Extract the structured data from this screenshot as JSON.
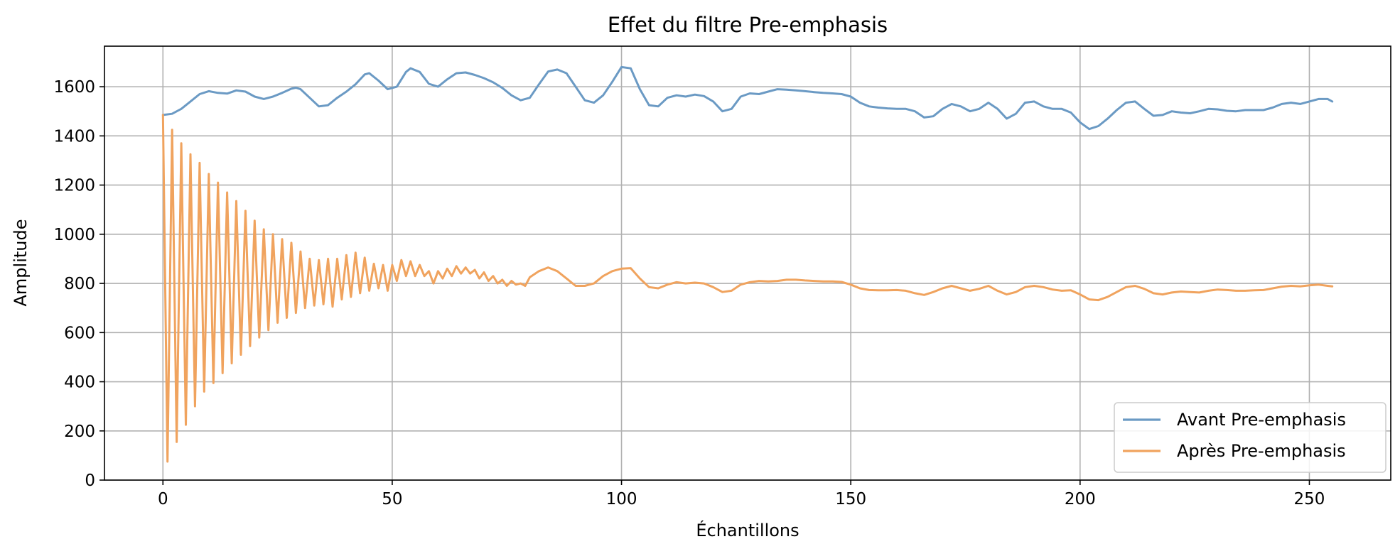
{
  "chart_data": {
    "type": "line",
    "title": "Effet du filtre Pre-emphasis",
    "xlabel": "Échantillons",
    "ylabel": "Amplitude",
    "xlim": [
      -12.75,
      267.75
    ],
    "ylim": [
      0,
      1765
    ],
    "xticks": [
      0,
      50,
      100,
      150,
      200,
      250
    ],
    "yticks": [
      0,
      200,
      400,
      600,
      800,
      1000,
      1200,
      1400,
      1600
    ],
    "grid": true,
    "legend_position": "lower right",
    "series": [
      {
        "name": "Avant Pre-emphasis",
        "color": "#6b9ac4",
        "x": [
          0,
          2,
          4,
          6,
          8,
          10,
          12,
          14,
          16,
          18,
          20,
          22,
          24,
          26,
          28,
          29,
          30,
          32,
          34,
          36,
          38,
          40,
          42,
          44,
          45,
          47,
          49,
          51,
          53,
          54,
          56,
          58,
          60,
          62,
          64,
          66,
          68,
          70,
          72,
          74,
          76,
          78,
          80,
          82,
          84,
          86,
          88,
          90,
          92,
          94,
          96,
          98,
          100,
          102,
          104,
          106,
          108,
          110,
          112,
          114,
          116,
          118,
          120,
          122,
          124,
          126,
          128,
          130,
          132,
          134,
          136,
          138,
          140,
          142,
          144,
          146,
          148,
          150,
          152,
          154,
          156,
          158,
          160,
          162,
          164,
          166,
          168,
          170,
          172,
          174,
          176,
          178,
          180,
          182,
          184,
          186,
          188,
          190,
          192,
          194,
          196,
          198,
          200,
          202,
          204,
          206,
          208,
          210,
          212,
          214,
          216,
          218,
          220,
          222,
          224,
          226,
          228,
          230,
          232,
          234,
          236,
          238,
          240,
          242,
          244,
          246,
          248,
          250,
          252,
          254,
          255
        ],
        "values": [
          1485,
          1490,
          1510,
          1540,
          1570,
          1582,
          1575,
          1572,
          1585,
          1580,
          1560,
          1550,
          1560,
          1575,
          1592,
          1596,
          1590,
          1555,
          1520,
          1525,
          1555,
          1580,
          1610,
          1650,
          1655,
          1625,
          1590,
          1600,
          1660,
          1675,
          1660,
          1612,
          1600,
          1630,
          1655,
          1658,
          1648,
          1635,
          1618,
          1595,
          1565,
          1545,
          1555,
          1610,
          1662,
          1670,
          1655,
          1600,
          1545,
          1535,
          1565,
          1620,
          1680,
          1675,
          1590,
          1525,
          1520,
          1555,
          1565,
          1560,
          1568,
          1562,
          1540,
          1500,
          1510,
          1560,
          1573,
          1570,
          1580,
          1590,
          1588,
          1585,
          1582,
          1578,
          1575,
          1573,
          1570,
          1560,
          1535,
          1520,
          1515,
          1512,
          1510,
          1510,
          1500,
          1475,
          1480,
          1510,
          1530,
          1520,
          1500,
          1510,
          1535,
          1510,
          1470,
          1490,
          1535,
          1540,
          1520,
          1510,
          1510,
          1495,
          1455,
          1428,
          1440,
          1470,
          1505,
          1535,
          1540,
          1510,
          1482,
          1485,
          1500,
          1495,
          1492,
          1500,
          1510,
          1508,
          1502,
          1500,
          1505,
          1505,
          1505,
          1515,
          1530,
          1535,
          1530,
          1540,
          1550,
          1550,
          1540
        ]
      },
      {
        "name": "Après Pre-emphasis",
        "color": "#f0a35e",
        "x": [
          0,
          1,
          2,
          3,
          4,
          5,
          6,
          7,
          8,
          9,
          10,
          11,
          12,
          13,
          14,
          15,
          16,
          17,
          18,
          19,
          20,
          21,
          22,
          23,
          24,
          25,
          26,
          27,
          28,
          29,
          30,
          31,
          32,
          33,
          34,
          35,
          36,
          37,
          38,
          39,
          40,
          41,
          42,
          43,
          44,
          45,
          46,
          47,
          48,
          49,
          50,
          51,
          52,
          53,
          54,
          55,
          56,
          57,
          58,
          59,
          60,
          61,
          62,
          63,
          64,
          65,
          66,
          67,
          68,
          69,
          70,
          71,
          72,
          73,
          74,
          75,
          76,
          77,
          78,
          79,
          80,
          82,
          84,
          86,
          88,
          90,
          92,
          94,
          96,
          98,
          100,
          102,
          104,
          106,
          108,
          110,
          112,
          114,
          116,
          118,
          120,
          122,
          124,
          126,
          128,
          130,
          132,
          134,
          136,
          138,
          140,
          142,
          144,
          146,
          148,
          150,
          152,
          154,
          156,
          158,
          160,
          162,
          164,
          166,
          168,
          170,
          172,
          174,
          176,
          178,
          180,
          182,
          184,
          186,
          188,
          190,
          192,
          194,
          196,
          198,
          200,
          202,
          204,
          206,
          208,
          210,
          212,
          214,
          216,
          218,
          220,
          222,
          224,
          226,
          228,
          230,
          232,
          234,
          236,
          238,
          240,
          242,
          244,
          246,
          248,
          250,
          252,
          254,
          255
        ],
        "values": [
          1485,
          75,
          1425,
          155,
          1370,
          225,
          1325,
          300,
          1290,
          360,
          1245,
          395,
          1210,
          435,
          1170,
          475,
          1135,
          510,
          1095,
          545,
          1055,
          580,
          1020,
          610,
          1000,
          640,
          980,
          660,
          965,
          680,
          930,
          700,
          900,
          710,
          895,
          715,
          900,
          705,
          900,
          735,
          915,
          745,
          925,
          760,
          905,
          770,
          880,
          780,
          875,
          770,
          875,
          810,
          895,
          830,
          890,
          830,
          875,
          830,
          850,
          800,
          850,
          820,
          860,
          830,
          870,
          840,
          865,
          840,
          855,
          820,
          845,
          810,
          830,
          800,
          815,
          790,
          810,
          795,
          800,
          790,
          825,
          850,
          865,
          850,
          820,
          790,
          790,
          800,
          830,
          850,
          860,
          862,
          820,
          785,
          780,
          795,
          805,
          800,
          803,
          800,
          785,
          765,
          770,
          795,
          805,
          810,
          808,
          810,
          815,
          815,
          812,
          810,
          808,
          808,
          806,
          795,
          780,
          773,
          772,
          772,
          773,
          770,
          760,
          753,
          765,
          780,
          790,
          780,
          770,
          778,
          790,
          770,
          755,
          765,
          785,
          790,
          785,
          775,
          770,
          772,
          755,
          735,
          732,
          745,
          765,
          785,
          790,
          778,
          760,
          755,
          763,
          767,
          765,
          763,
          770,
          775,
          773,
          770,
          770,
          772,
          773,
          780,
          787,
          790,
          788,
          792,
          795,
          790,
          788
        ]
      }
    ]
  }
}
